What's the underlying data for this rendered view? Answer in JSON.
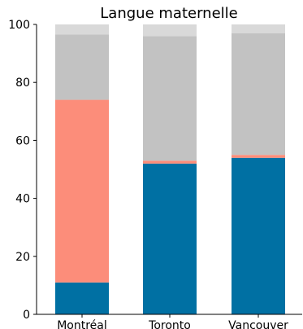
{
  "chart_data": {
    "type": "bar",
    "stacked": true,
    "title": "Langue maternelle",
    "categories": [
      "Montréal",
      "Toronto",
      "Vancouver"
    ],
    "series": [
      {
        "color": "#0070a3",
        "values": [
          11,
          52,
          54
        ]
      },
      {
        "color": "#fc8d7a",
        "values": [
          63,
          1,
          1
        ]
      },
      {
        "color": "#c2c2c2",
        "values": [
          22.5,
          43,
          42
        ]
      },
      {
        "color": "#d9d9d9",
        "values": [
          3.5,
          4,
          3
        ]
      }
    ],
    "ylim": [
      0,
      100
    ],
    "yticks": [
      0,
      20,
      40,
      60,
      80,
      100
    ],
    "xlabel": "",
    "ylabel": "",
    "grid": false,
    "legend": "none"
  }
}
